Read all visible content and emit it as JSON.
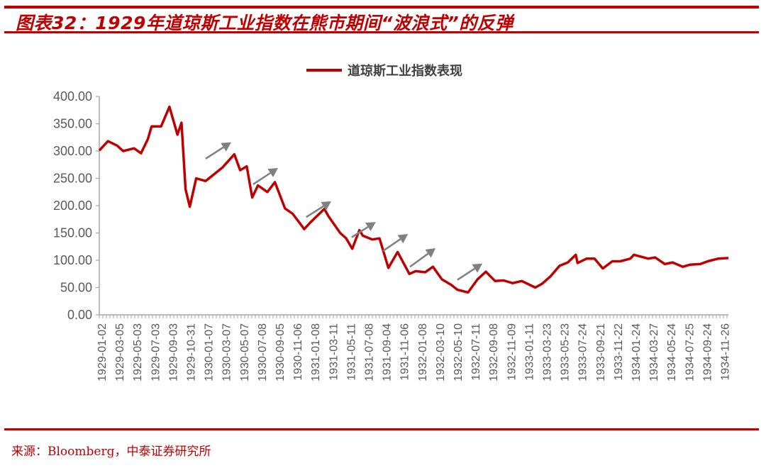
{
  "title": "图表32：1929年道琼斯工业指数在熊市期间“波浪式”的反弹",
  "source": "来源：Bloomberg，中泰证券研究所",
  "colors": {
    "accent": "#c00000",
    "series": "#c00000",
    "arrow": "#808080",
    "axis": "#a6a6a6",
    "tick_text": "#595959"
  },
  "chart_data": {
    "type": "line",
    "title": "",
    "xlabel": "",
    "ylabel": "",
    "legend": {
      "position": "top",
      "entries": [
        "道琼斯工业指数表现"
      ]
    },
    "grid": false,
    "ylim": [
      0,
      400
    ],
    "yticks": [
      "0.00",
      "50.00",
      "100.00",
      "150.00",
      "200.00",
      "250.00",
      "300.00",
      "350.00",
      "400.00"
    ],
    "xlim": [
      "1929-01-02",
      "1934-12-31"
    ],
    "xticks": [
      "1929-01-02",
      "1929-03-05",
      "1929-05-03",
      "1929-07-03",
      "1929-09-03",
      "1929-10-31",
      "1930-01-07",
      "1930-03-07",
      "1930-05-07",
      "1930-07-08",
      "1930-09-05",
      "1930-11-06",
      "1931-01-08",
      "1931-03-11",
      "1931-05-11",
      "1931-07-08",
      "1931-09-04",
      "1931-11-06",
      "1932-01-08",
      "1932-03-10",
      "1932-05-10",
      "1932-07-11",
      "1932-09-08",
      "1932-11-09",
      "1933-01-11",
      "1933-03-23",
      "1933-05-23",
      "1933-07-24",
      "1933-09-21",
      "1933-11-22",
      "1934-01-24",
      "1934-03-27",
      "1934-05-24",
      "1934-07-25",
      "1934-09-24",
      "1934-11-26"
    ],
    "series": [
      {
        "name": "道琼斯工业指数表现",
        "points": [
          [
            "1929-01-02",
            301
          ],
          [
            "1929-02-01",
            318
          ],
          [
            "1929-03-05",
            310
          ],
          [
            "1929-03-26",
            300
          ],
          [
            "1929-05-03",
            305
          ],
          [
            "1929-05-27",
            296
          ],
          [
            "1929-06-20",
            322
          ],
          [
            "1929-07-03",
            345
          ],
          [
            "1929-08-05",
            345
          ],
          [
            "1929-09-03",
            381
          ],
          [
            "1929-10-01",
            330
          ],
          [
            "1929-10-15",
            352
          ],
          [
            "1929-10-29",
            230
          ],
          [
            "1929-11-13",
            198
          ],
          [
            "1929-12-05",
            250
          ],
          [
            "1930-01-07",
            245
          ],
          [
            "1930-03-07",
            270
          ],
          [
            "1930-04-17",
            294
          ],
          [
            "1930-05-07",
            265
          ],
          [
            "1930-05-30",
            272
          ],
          [
            "1930-06-18",
            215
          ],
          [
            "1930-07-08",
            237
          ],
          [
            "1930-08-10",
            225
          ],
          [
            "1930-09-05",
            243
          ],
          [
            "1930-10-10",
            195
          ],
          [
            "1930-11-06",
            185
          ],
          [
            "1930-12-16",
            157
          ],
          [
            "1931-01-08",
            170
          ],
          [
            "1931-02-24",
            194
          ],
          [
            "1931-03-11",
            180
          ],
          [
            "1931-04-20",
            150
          ],
          [
            "1931-05-11",
            140
          ],
          [
            "1931-06-01",
            121
          ],
          [
            "1931-06-26",
            155
          ],
          [
            "1931-07-08",
            145
          ],
          [
            "1931-08-10",
            138
          ],
          [
            "1931-09-04",
            140
          ],
          [
            "1931-10-05",
            86
          ],
          [
            "1931-11-06",
            115
          ],
          [
            "1931-12-17",
            75
          ],
          [
            "1932-01-08",
            80
          ],
          [
            "1932-02-10",
            78
          ],
          [
            "1932-03-08",
            88
          ],
          [
            "1932-04-08",
            65
          ],
          [
            "1932-05-10",
            55
          ],
          [
            "1932-06-01",
            46
          ],
          [
            "1932-07-08",
            41
          ],
          [
            "1932-08-10",
            65
          ],
          [
            "1932-09-08",
            79
          ],
          [
            "1932-10-10",
            62
          ],
          [
            "1932-11-09",
            63
          ],
          [
            "1932-12-10",
            58
          ],
          [
            "1933-01-11",
            62
          ],
          [
            "1933-02-27",
            50
          ],
          [
            "1933-03-23",
            57
          ],
          [
            "1933-04-20",
            70
          ],
          [
            "1933-05-23",
            90
          ],
          [
            "1933-06-20",
            96
          ],
          [
            "1933-07-18",
            110
          ],
          [
            "1933-07-24",
            95
          ],
          [
            "1933-08-25",
            103
          ],
          [
            "1933-09-21",
            103
          ],
          [
            "1933-10-20",
            85
          ],
          [
            "1933-11-22",
            98
          ],
          [
            "1933-12-20",
            98
          ],
          [
            "1934-01-24",
            103
          ],
          [
            "1934-02-05",
            110
          ],
          [
            "1934-03-27",
            103
          ],
          [
            "1934-04-20",
            105
          ],
          [
            "1934-05-24",
            93
          ],
          [
            "1934-06-20",
            96
          ],
          [
            "1934-07-25",
            88
          ],
          [
            "1934-08-20",
            92
          ],
          [
            "1934-09-24",
            93
          ],
          [
            "1934-10-20",
            98
          ],
          [
            "1934-11-26",
            103
          ],
          [
            "1934-12-31",
            104
          ]
        ]
      }
    ],
    "annotations": [
      {
        "type": "arrow",
        "from": [
          "1930-01-07",
          286
        ],
        "to": [
          "1930-04-06",
          316
        ]
      },
      {
        "type": "arrow",
        "from": [
          "1930-06-21",
          239
        ],
        "to": [
          "1930-09-16",
          269
        ]
      },
      {
        "type": "arrow",
        "from": [
          "1930-12-23",
          179
        ],
        "to": [
          "1931-03-20",
          208
        ]
      },
      {
        "type": "arrow",
        "from": [
          "1931-05-30",
          142
        ],
        "to": [
          "1931-08-22",
          170
        ]
      },
      {
        "type": "arrow",
        "from": [
          "1931-09-16",
          117
        ],
        "to": [
          "1931-12-12",
          148
        ]
      },
      {
        "type": "arrow",
        "from": [
          "1931-12-19",
          88
        ],
        "to": [
          "1932-03-17",
          122
        ]
      },
      {
        "type": "arrow",
        "from": [
          "1932-06-01",
          64
        ],
        "to": [
          "1932-08-27",
          94
        ]
      }
    ]
  }
}
